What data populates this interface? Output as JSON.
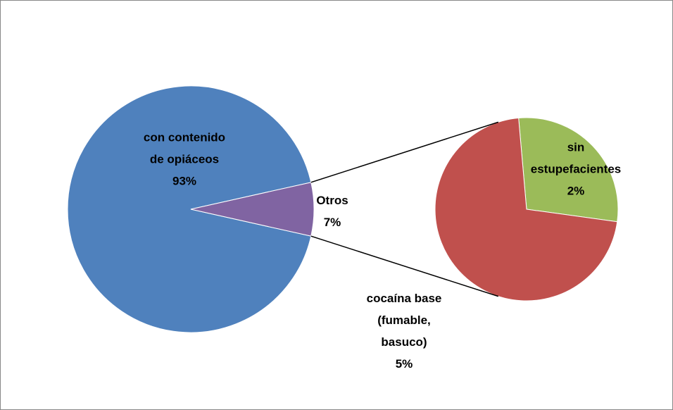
{
  "chart_data": {
    "type": "pie-of-pie",
    "categories": [
      "con contenido de opiáceos",
      "Otros"
    ],
    "values": [
      93,
      7
    ],
    "value_labels": [
      "93%",
      "7%"
    ],
    "colors": [
      "#4f81bd",
      "#8064a2"
    ],
    "secondary": {
      "categories": [
        "sin estupefacientes",
        "cocaína base (fumable, basuco)"
      ],
      "values": [
        2,
        5
      ],
      "value_labels": [
        "2%",
        "5%"
      ],
      "colors": [
        "#9bbb59",
        "#c0504d"
      ]
    }
  }
}
